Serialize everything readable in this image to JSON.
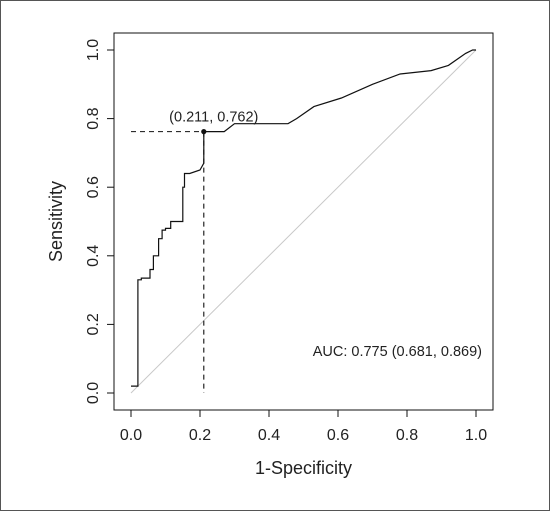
{
  "chart_data": {
    "type": "line",
    "title": "",
    "xlabel": "1-Specificity",
    "ylabel": "Sensitivity",
    "xlim": [
      0,
      1
    ],
    "ylim": [
      0,
      1
    ],
    "x_ticks": [
      "0.0",
      "0.2",
      "0.4",
      "0.6",
      "0.8",
      "1.0"
    ],
    "y_ticks": [
      "0.0",
      "0.2",
      "0.4",
      "0.6",
      "0.8",
      "1.0"
    ],
    "grid": false,
    "colors": {
      "roc": "#111111",
      "reference": "#c8c8c8",
      "cutoff": "#111111"
    },
    "series": [
      {
        "x": [
          0.0,
          0.02,
          0.02,
          0.03,
          0.03,
          0.055,
          0.055,
          0.065,
          0.065,
          0.08,
          0.08,
          0.09,
          0.09,
          0.1,
          0.1,
          0.115,
          0.115,
          0.125,
          0.125,
          0.15,
          0.15,
          0.155,
          0.155,
          0.17,
          0.17,
          0.2,
          0.2,
          0.211,
          0.211,
          0.27,
          0.3,
          0.3,
          0.455,
          0.48,
          0.53,
          0.61,
          0.7,
          0.78,
          0.87,
          0.92,
          0.97,
          0.99,
          1.0
        ],
        "y": [
          0.02,
          0.02,
          0.33,
          0.33,
          0.335,
          0.335,
          0.36,
          0.36,
          0.4,
          0.4,
          0.45,
          0.45,
          0.475,
          0.475,
          0.48,
          0.48,
          0.5,
          0.5,
          0.5,
          0.5,
          0.6,
          0.6,
          0.64,
          0.64,
          0.64,
          0.65,
          0.65,
          0.67,
          0.762,
          0.762,
          0.785,
          0.785,
          0.785,
          0.8,
          0.835,
          0.86,
          0.9,
          0.93,
          0.94,
          0.955,
          0.99,
          1.0,
          1.0
        ]
      }
    ],
    "reference_line": {
      "x": [
        0,
        1
      ],
      "y": [
        0,
        1
      ]
    },
    "cutoff_point": {
      "x": 0.211,
      "y": 0.762,
      "label": "(0.211, 0.762)"
    },
    "annotation": "AUC: 0.775 (0.681, 0.869)"
  }
}
